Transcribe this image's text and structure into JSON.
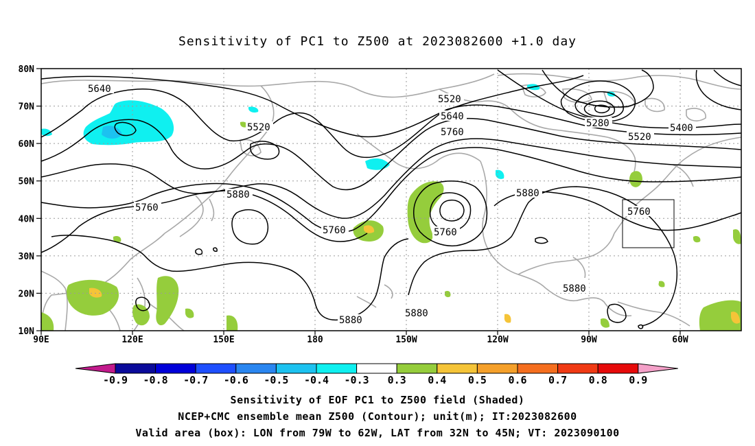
{
  "title": "Sensitivity of PC1 to Z500 at 2023082600 +1.0 day",
  "lat_labels": [
    "80N",
    "70N",
    "60N",
    "50N",
    "40N",
    "30N",
    "20N",
    "10N"
  ],
  "lon_labels": [
    "90E",
    "120E",
    "150E",
    "180",
    "150W",
    "120W",
    "90W",
    "60W"
  ],
  "contour_labels": {
    "c5640_a": "5640",
    "c5520_a": "5520",
    "c5520_b": "5520",
    "c5640_b": "5640",
    "c5760_a": "5760",
    "c5760_b": "5760",
    "c5760_c": "5760",
    "c5760_d": "5760",
    "c5880_a": "5880",
    "c5880_b": "5880",
    "c5880_c": "5880",
    "c5880_d": "5880",
    "c5880_e": "5880",
    "c5280": "5280",
    "c5400": "5400",
    "c5520_c": "5520"
  },
  "colorbar": {
    "labels": [
      "-0.9",
      "-0.8",
      "-0.7",
      "-0.6",
      "-0.5",
      "-0.4",
      "-0.3",
      "0.3",
      "0.4",
      "0.5",
      "0.6",
      "0.7",
      "0.8",
      "0.9"
    ],
    "colors": [
      "#c21a8c",
      "#0a0a9a",
      "#0000d9",
      "#1e4fff",
      "#2a86f0",
      "#1cc2f0",
      "#0ff0f0",
      "#ffffff",
      "#95cd3c",
      "#f5c438",
      "#f5a02a",
      "#f56e1e",
      "#f03a14",
      "#e60a0a",
      "#f4a0c8"
    ]
  },
  "captions": {
    "line1": "Sensitivity of EOF PC1 to Z500 field (Shaded)",
    "line2": "NCEP+CMC ensemble mean Z500 (Contour); unit(m); IT:2023082600",
    "line3": "Valid area (box): LON from 79W to 62W, LAT from 32N to 45N; VT: 2023090100"
  }
}
